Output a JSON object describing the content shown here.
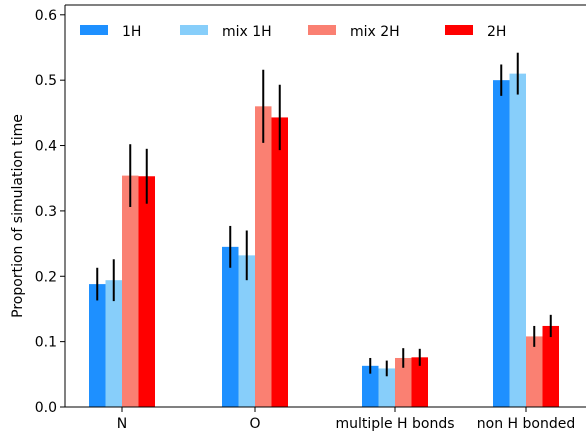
{
  "chart_data": {
    "type": "bar",
    "title": "",
    "xlabel": "",
    "ylabel": "Proportion of simulation time",
    "ylim": [
      0.0,
      0.6
    ],
    "yticks": [
      "0.0",
      "0.1",
      "0.2",
      "0.3",
      "0.4",
      "0.5",
      "0.6"
    ],
    "categories": [
      "N",
      "O",
      "multiple H bonds",
      "non H bonded"
    ],
    "series": [
      {
        "name": "1H",
        "color": "#1e90ff",
        "values": [
          0.188,
          0.245,
          0.063,
          0.5
        ],
        "err": [
          0.025,
          0.032,
          0.012,
          0.024
        ]
      },
      {
        "name": "mix 1H",
        "color": "#87cefa",
        "values": [
          0.194,
          0.232,
          0.059,
          0.51
        ],
        "err": [
          0.032,
          0.038,
          0.012,
          0.032
        ]
      },
      {
        "name": "mix 2H",
        "color": "#fa8072",
        "values": [
          0.354,
          0.46,
          0.075,
          0.108
        ],
        "err": [
          0.048,
          0.056,
          0.015,
          0.016
        ]
      },
      {
        "name": "2H",
        "color": "#ff0000",
        "values": [
          0.353,
          0.443,
          0.076,
          0.124
        ],
        "err": [
          0.042,
          0.05,
          0.013,
          0.017
        ]
      }
    ],
    "legend": "top"
  }
}
